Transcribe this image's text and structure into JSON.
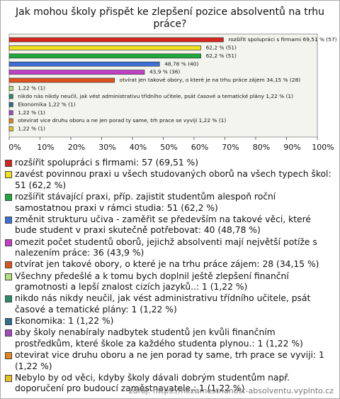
{
  "chart_data": {
    "type": "hbar",
    "title": "Jak mohou školy přispět ke zlepšení pozice absolventů na trhu práce?",
    "categories": [
      "rozšířit spolupráci s firmami: 57 (69,51 %)",
      "zavést povinnou praxi u všech studovaných oborů na všech typech škol: 51 (62,2 %)",
      "rozšířit stávající praxi, příp. zajistit studentům alespoň roční samostatnou praxi v rámci studia: 51 (62,2 %)",
      "změnit strukturu učiva - zaměřit se především na takové věci, které bude student v praxi skutečně potřebovat: 40 (48,78 %)",
      "omezit počet studentů oborů, jejichž absolventi mají největší potíže s nalezením práce: 36 (43,9 %)",
      "otvírat jen takové obory, o které je na trhu práce zájem: 28 (34,15 %)",
      "Všechny předešlé a k tomu bych doplnil ještě zlepšení finanční gramotnosti a lepší znalost cizích jazyků..: 1 (1,22 %)",
      "nikdo nás nikdy neučil, jak vést administrativu třídního učitele, psát časové a tematické plány: 1 (1,22 %)",
      "Ekonomika: 1 (1,22 %)",
      "aby školy nenabíraly nadbytek studentů jen kvůli finančním prostředkům, které škole za každého studenta plynou.: 1 (1,22 %)",
      "otevirat vice druhu oboru a ne jen porad ty same, trh prace se vyviji: 1 (1,22 %)",
      "Nebylo by od věci, kdyby školy dávali dobrým studentům např. doporučení pro budoucí zaměstnavatele.: 1 (1,22 %)"
    ],
    "values": [
      69.51,
      62.2,
      62.2,
      48.78,
      43.9,
      34.15,
      1.22,
      1.22,
      1.22,
      1.22,
      1.22,
      1.22
    ],
    "value_labels": [
      "rozšířit spolupráci s firmami 69,51 % (57)",
      "62,2 % (51)",
      "62,2 % (51)",
      "48,78 % (40)",
      "43,9 % (36)",
      "otvírat jen takové obory, o které je na trhu práce zájem 34,15 % (28)",
      "1,22 % (1)",
      "nikdo nás nikdy neučil, jak vést administrativu třídního učitele, psát časové a tematické plány 1,22 % (1)",
      "Ekonomika 1,22 % (1)",
      "1,22 % (1)",
      "otevirat vice druhu oboru a ne jen porad ty same, trh prace se vyviji 1,22 % (1)",
      "1,22 % (1)"
    ],
    "colors": [
      "#d8261c",
      "#f2e21c",
      "#1fa83c",
      "#3c6fd8",
      "#c43fc8",
      "#e0521e",
      "#b5df78",
      "#2a8a6a",
      "#2f6f8f",
      "#a04cc0",
      "#e0861c",
      "#e8c21e"
    ],
    "xlim": [
      0,
      100
    ],
    "xticks": [
      {
        "value": 0,
        "label": "0%"
      },
      {
        "value": 10,
        "label": "10%"
      },
      {
        "value": 20,
        "label": "20%"
      },
      {
        "value": 30,
        "label": "30%"
      },
      {
        "value": 40,
        "label": "40%"
      },
      {
        "value": 50,
        "label": "50%"
      },
      {
        "value": 60,
        "label": "60%"
      },
      {
        "value": 70,
        "label": "70%"
      },
      {
        "value": 80,
        "label": "80%"
      },
      {
        "value": 90,
        "label": "90%"
      },
      {
        "value": 100,
        "label": "100%"
      }
    ],
    "source": "zdroj: https://nezamestnanost-absolventu.vyplnto.cz"
  }
}
